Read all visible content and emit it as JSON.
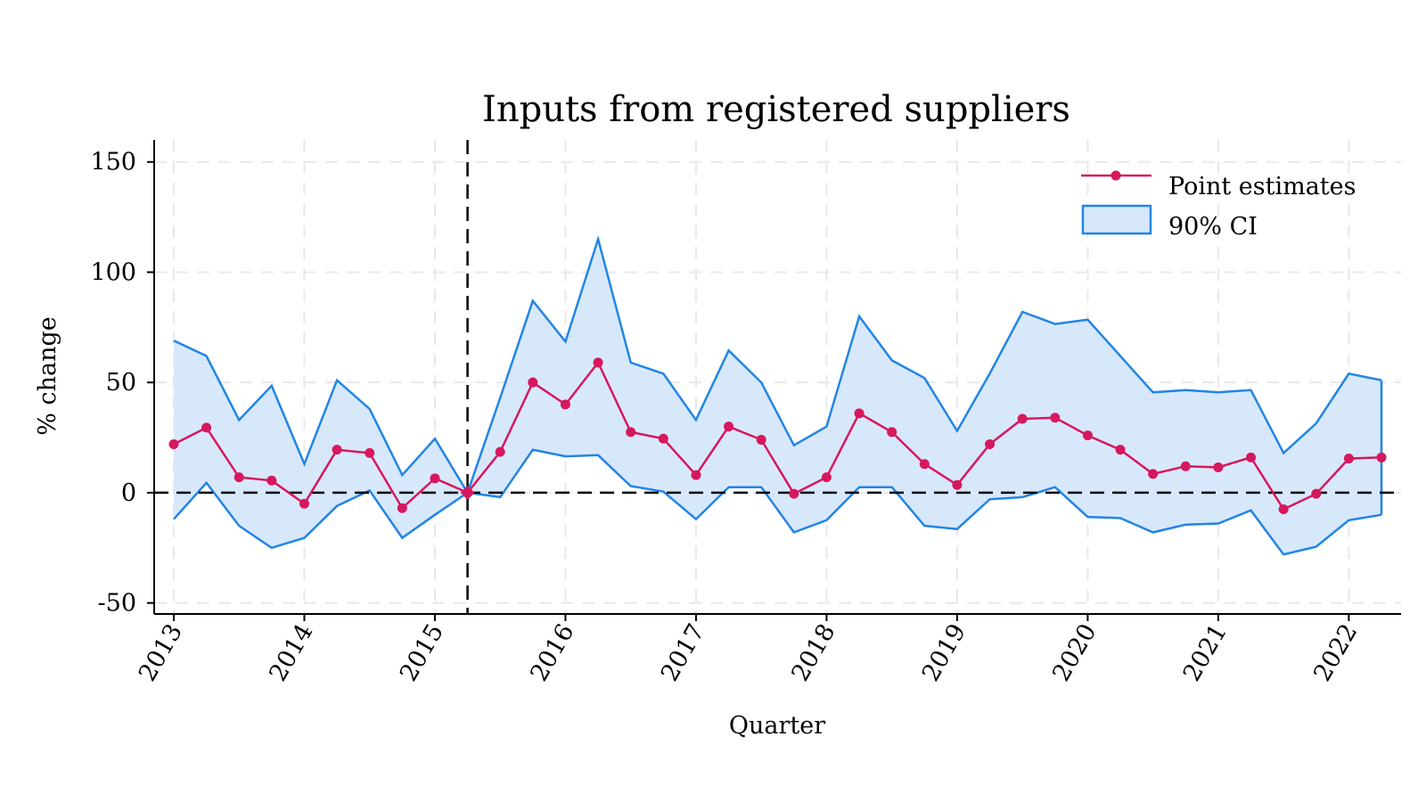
{
  "chart_data": {
    "type": "line",
    "title": "Inputs from registered suppliers",
    "xlabel": "Quarter",
    "ylabel": "% change",
    "ylim": [
      -55,
      160
    ],
    "xlim": [
      2012.85,
      2022.4
    ],
    "yticks": [
      -50,
      0,
      50,
      100,
      150
    ],
    "ytick_labels": [
      "-50",
      "0",
      "50",
      "100",
      "150"
    ],
    "xticks": [
      2013,
      2014,
      2015,
      2016,
      2017,
      2018,
      2019,
      2020,
      2021,
      2022
    ],
    "xtick_labels": [
      "2013",
      "2014",
      "2015",
      "2016",
      "2017",
      "2018",
      "2019",
      "2020",
      "2021",
      "2022"
    ],
    "grid": true,
    "legend_position": "top-right",
    "reference_lines": {
      "horizontal_y": 0,
      "vertical_x": 2015.25,
      "style": "dashed",
      "color": "#000000"
    },
    "series": [
      {
        "name": "Point estimates",
        "color": "#d6185d",
        "x": [
          2013,
          2013.25,
          2013.5,
          2013.75,
          2014,
          2014.25,
          2014.5,
          2014.75,
          2015,
          2015.25,
          2015.5,
          2015.75,
          2016,
          2016.25,
          2016.5,
          2016.75,
          2017,
          2017.25,
          2017.5,
          2017.75,
          2018,
          2018.25,
          2018.5,
          2018.75,
          2019,
          2019.25,
          2019.5,
          2019.75,
          2020,
          2020.25,
          2020.5,
          2020.75,
          2021,
          2021.25,
          2021.5,
          2021.75,
          2022,
          2022.25
        ],
        "y": [
          22,
          29.5,
          7,
          5.5,
          -5,
          19.5,
          18,
          -7,
          6.5,
          0,
          18.5,
          50,
          40,
          59,
          27.5,
          24.5,
          8,
          30,
          24,
          -0.5,
          7,
          36,
          27.5,
          13,
          3.5,
          22,
          33.5,
          34,
          26,
          19.5,
          8.5,
          12,
          11.5,
          16,
          -7.5,
          -0.5,
          15.5,
          16
        ]
      },
      {
        "name": "90% CI",
        "color": "#2185e6",
        "fill": "#d8e8fb",
        "x": [
          2013,
          2013.25,
          2013.5,
          2013.75,
          2014,
          2014.25,
          2014.5,
          2014.75,
          2015,
          2015.25,
          2015.5,
          2015.75,
          2016,
          2016.25,
          2016.5,
          2016.75,
          2017,
          2017.25,
          2017.5,
          2017.75,
          2018,
          2018.25,
          2018.5,
          2018.75,
          2019,
          2019.25,
          2019.5,
          2019.75,
          2020,
          2020.25,
          2020.5,
          2020.75,
          2021,
          2021.25,
          2021.5,
          2021.75,
          2022,
          2022.25
        ],
        "upper": [
          69,
          62,
          33,
          48.5,
          13,
          51,
          38,
          8,
          24.5,
          0,
          43,
          87,
          68.5,
          115,
          59,
          54,
          33,
          64.5,
          50,
          21.5,
          30,
          80,
          60,
          52,
          28,
          54,
          82,
          76.5,
          78.5,
          62,
          45.5,
          46.5,
          45.5,
          46.5,
          18,
          31.5,
          54,
          51
        ],
        "lower": [
          -12,
          4.5,
          -15,
          -25,
          -20.5,
          -6,
          1,
          -20.5,
          -10,
          0,
          -2,
          19.5,
          16.5,
          17,
          3,
          0.5,
          -12,
          2.5,
          2.5,
          -18,
          -12.5,
          2.5,
          2.5,
          -15,
          -16.5,
          -3,
          -2,
          2.5,
          -11,
          -11.5,
          -18,
          -14.5,
          -14,
          -8,
          -28,
          -24.5,
          -12.5,
          -10
        ]
      }
    ]
  }
}
